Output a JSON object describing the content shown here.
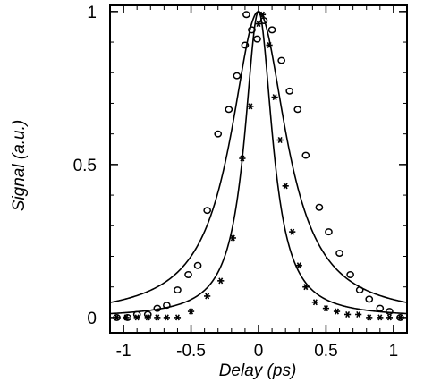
{
  "chart_data": {
    "type": "scatter",
    "xlabel": "Delay (ps)",
    "ylabel": "Signal (a.u.)",
    "xlim": [
      -1.1,
      1.1
    ],
    "ylim": [
      -0.05,
      1.02
    ],
    "x_ticks": [
      {
        "value": -1,
        "label": "-1"
      },
      {
        "value": -0.5,
        "label": "-0.5"
      },
      {
        "value": 0,
        "label": "0"
      },
      {
        "value": 0.5,
        "label": "0.5"
      },
      {
        "value": 1,
        "label": "1"
      }
    ],
    "y_ticks": [
      {
        "value": 0,
        "label": "0"
      },
      {
        "value": 0.5,
        "label": "0.5"
      },
      {
        "value": 1,
        "label": "1"
      }
    ],
    "grid": false,
    "legend": "none",
    "series": [
      {
        "marker": "circle",
        "points": [
          [
            -1.05,
            0.0
          ],
          [
            -0.97,
            0.0
          ],
          [
            -0.9,
            0.01
          ],
          [
            -0.82,
            0.01
          ],
          [
            -0.75,
            0.03
          ],
          [
            -0.68,
            0.04
          ],
          [
            -0.6,
            0.09
          ],
          [
            -0.52,
            0.14
          ],
          [
            -0.45,
            0.17
          ],
          [
            -0.38,
            0.35
          ],
          [
            -0.3,
            0.6
          ],
          [
            -0.22,
            0.68
          ],
          [
            -0.16,
            0.79
          ],
          [
            -0.1,
            0.89
          ],
          [
            -0.05,
            0.94
          ],
          [
            -0.09,
            0.99
          ],
          [
            -0.01,
            0.91
          ],
          [
            0.04,
            0.97
          ],
          [
            0.1,
            0.94
          ],
          [
            0.17,
            0.84
          ],
          [
            0.23,
            0.74
          ],
          [
            0.29,
            0.68
          ],
          [
            0.35,
            0.53
          ],
          [
            0.45,
            0.36
          ],
          [
            0.52,
            0.28
          ],
          [
            0.6,
            0.21
          ],
          [
            0.68,
            0.14
          ],
          [
            0.75,
            0.09
          ],
          [
            0.82,
            0.06
          ],
          [
            0.9,
            0.03
          ],
          [
            0.97,
            0.02
          ],
          [
            1.05,
            0.0
          ]
        ]
      },
      {
        "marker": "asterisk",
        "points": [
          [
            -1.05,
            0.0
          ],
          [
            -0.98,
            0.0
          ],
          [
            -0.9,
            0.0
          ],
          [
            -0.82,
            0.0
          ],
          [
            -0.75,
            0.0
          ],
          [
            -0.68,
            0.0
          ],
          [
            -0.6,
            0.0
          ],
          [
            -0.5,
            0.02
          ],
          [
            -0.38,
            0.07
          ],
          [
            -0.28,
            0.12
          ],
          [
            -0.19,
            0.26
          ],
          [
            -0.12,
            0.52
          ],
          [
            -0.06,
            0.69
          ],
          [
            0.0,
            0.96
          ],
          [
            0.03,
            0.99
          ],
          [
            0.08,
            0.89
          ],
          [
            0.12,
            0.72
          ],
          [
            0.16,
            0.58
          ],
          [
            0.2,
            0.43
          ],
          [
            0.25,
            0.28
          ],
          [
            0.3,
            0.17
          ],
          [
            0.35,
            0.1
          ],
          [
            0.42,
            0.05
          ],
          [
            0.5,
            0.03
          ],
          [
            0.58,
            0.02
          ],
          [
            0.66,
            0.01
          ],
          [
            0.74,
            0.01
          ],
          [
            0.82,
            0.0
          ],
          [
            0.9,
            0.0
          ],
          [
            0.97,
            0.0
          ],
          [
            1.05,
            0.0
          ]
        ]
      }
    ],
    "fits": [
      {
        "shape": "lorentzian",
        "center": 0,
        "amplitude": 1.0,
        "fwhm": 0.5
      },
      {
        "shape": "lorentzian",
        "center": 0,
        "amplitude": 1.0,
        "fwhm": 0.25
      }
    ]
  }
}
